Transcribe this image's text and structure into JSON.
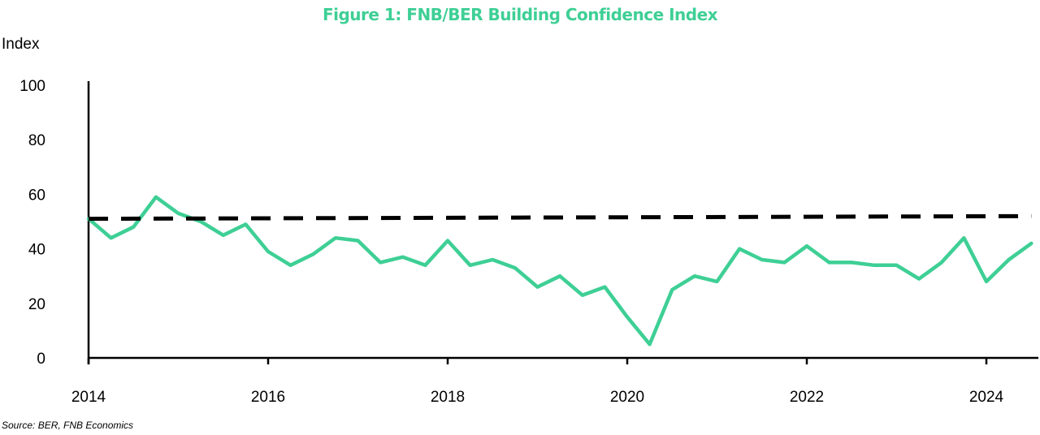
{
  "chart_data": {
    "type": "line",
    "title": "Figure 1: FNB/BER Building Confidence Index",
    "ylabel": "Index",
    "xlabel": "",
    "ylim": [
      0,
      100
    ],
    "yticks": [
      "0",
      "20",
      "40",
      "60",
      "80",
      "100"
    ],
    "xticks": [
      "2014",
      "2016",
      "2018",
      "2020",
      "2022",
      "2024"
    ],
    "grid": false,
    "source": "Source: BER, FNB Economics",
    "colors": {
      "title": "#3ecf95",
      "index_line": "#3ecf95",
      "average_line": "#000000"
    },
    "series": [
      {
        "style": "solid",
        "x": [
          "2014Q1",
          "2014Q2",
          "2014Q3",
          "2014Q4",
          "2015Q1",
          "2015Q2",
          "2015Q3",
          "2015Q4",
          "2016Q1",
          "2016Q2",
          "2016Q3",
          "2016Q4",
          "2017Q1",
          "2017Q2",
          "2017Q3",
          "2017Q4",
          "2018Q1",
          "2018Q2",
          "2018Q3",
          "2018Q4",
          "2019Q1",
          "2019Q2",
          "2019Q3",
          "2019Q4",
          "2020Q1",
          "2020Q2",
          "2020Q3",
          "2020Q4",
          "2021Q1",
          "2021Q2",
          "2021Q3",
          "2021Q4",
          "2022Q1",
          "2022Q2",
          "2022Q3",
          "2022Q4",
          "2023Q1",
          "2023Q2",
          "2023Q3",
          "2023Q4",
          "2024Q1",
          "2024Q2",
          "2024Q3"
        ],
        "values": [
          51,
          44,
          48,
          59,
          53,
          50,
          45,
          49,
          39,
          34,
          38,
          44,
          43,
          35,
          37,
          34,
          43,
          34,
          36,
          33,
          26,
          30,
          23,
          26,
          15,
          5,
          25,
          30,
          28,
          40,
          36,
          35,
          41,
          35,
          35,
          34,
          34,
          29,
          35,
          44,
          28,
          36,
          42
        ]
      },
      {
        "style": "dashed",
        "x": [
          "2014Q1",
          "2024Q3"
        ],
        "values": [
          51,
          52
        ]
      }
    ]
  }
}
